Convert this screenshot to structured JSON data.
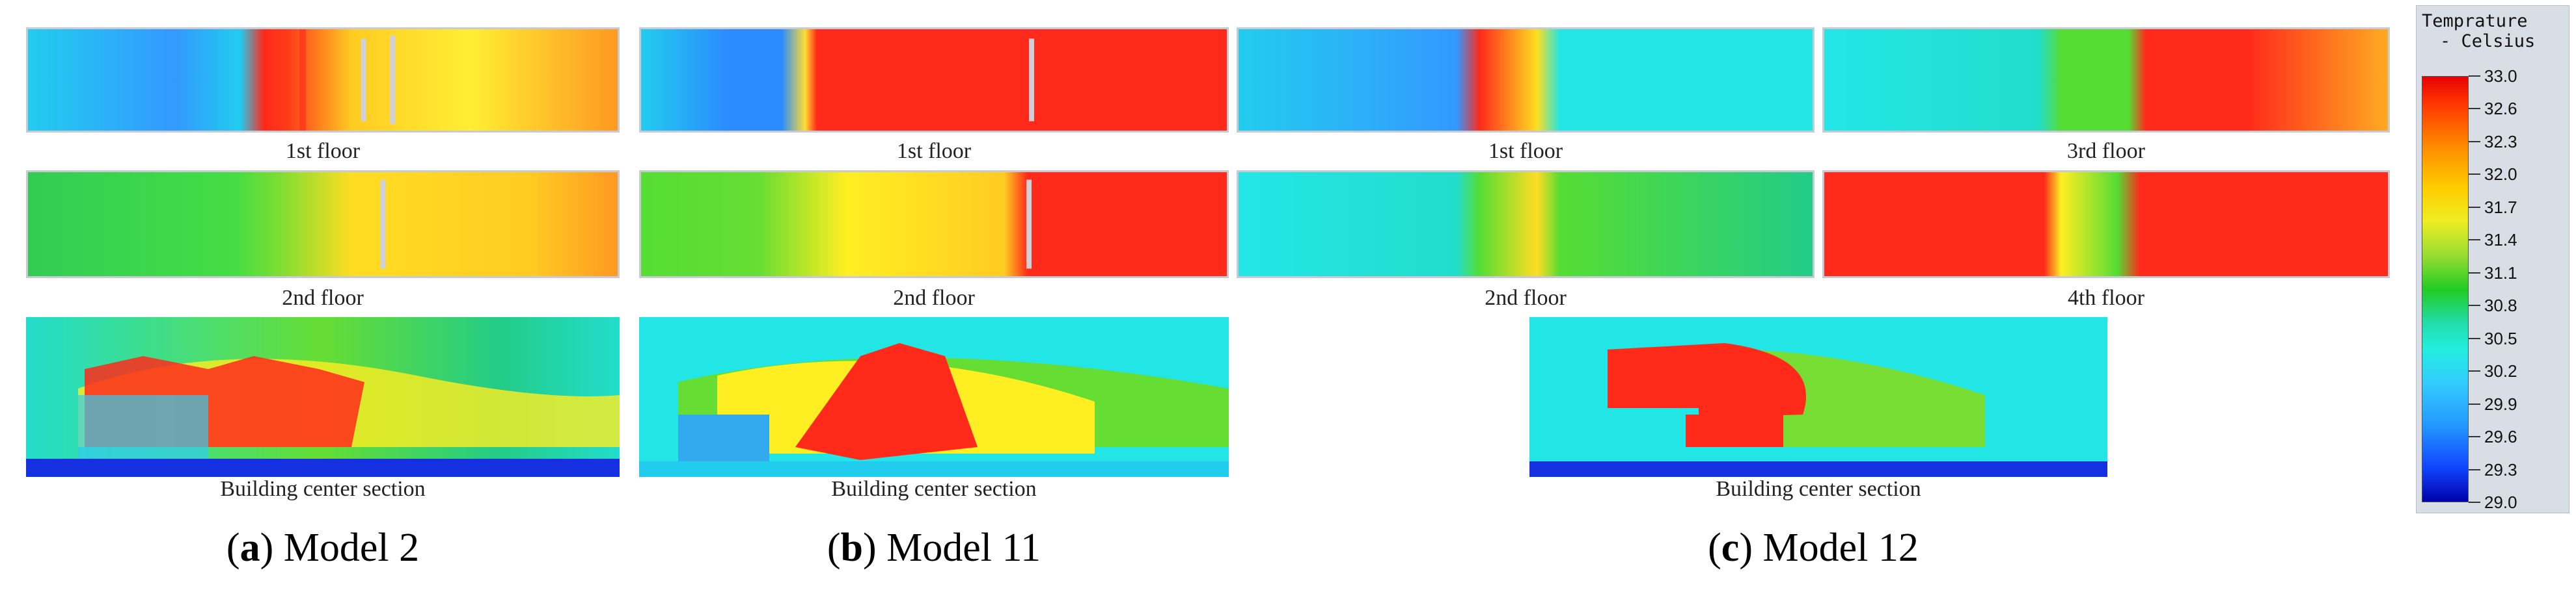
{
  "labels": {
    "a_floor1": "1st floor",
    "a_floor2": "2nd floor",
    "a_section": "Building center section",
    "b_floor1": "1st floor",
    "b_floor2": "2nd floor",
    "b_section": "Building center section",
    "c_floor1": "1st floor",
    "c_floor2": "2nd floor",
    "c_floor3": "3rd floor",
    "c_floor4": "4th floor",
    "c_section": "Building center section"
  },
  "captions": {
    "a_letter": "a",
    "a_text": " Model 2",
    "b_letter": "b",
    "b_text": " Model 11",
    "c_letter": "c",
    "c_text": " Model 12"
  },
  "legend": {
    "title_line1": "Temprature",
    "title_line2": "- Celsius",
    "values": [
      "33.0",
      "32.6",
      "32.3",
      "32.0",
      "31.7",
      "31.4",
      "31.1",
      "30.8",
      "30.5",
      "30.2",
      "29.9",
      "29.6",
      "29.3",
      "29.0"
    ]
  },
  "colors": {
    "hot": "#ff2a1a",
    "warm": "#ffee22",
    "mild": "#55dd33",
    "cool": "#22e6e6",
    "cold": "#2a8bff",
    "ground": "#1430e0",
    "frame": "#c8cad4"
  }
}
